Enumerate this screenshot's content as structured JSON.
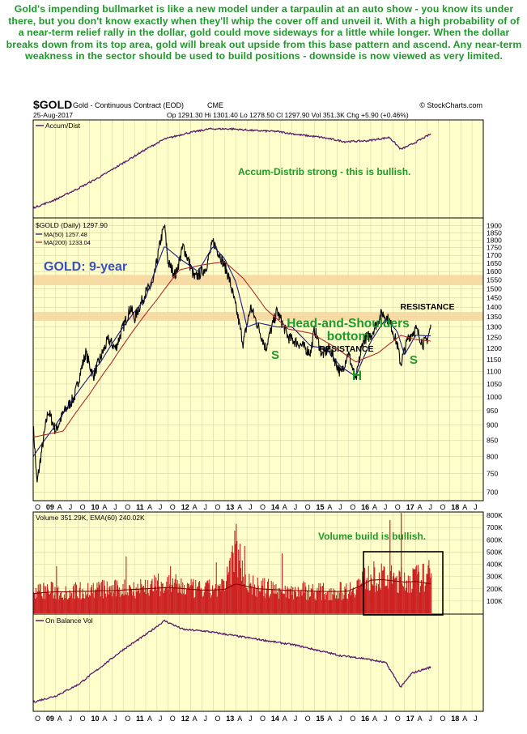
{
  "caption": "Gold's impending bullmarket is like a new model under a tarpaulin at an auto show - you know its under there, but you don't know exactly when they'll whip the cover off and unveil it. With a high probability of of a near-term relief rally in the dollar, gold could move sideways for a little while longer. When the dollar breaks down from its top area, gold will break out upside from this base pattern and ascend. Any near-term weakness in the sector should be used to build positions - downside is now viewed as very limited.",
  "header": {
    "symbol": "$GOLD",
    "name": "Gold - Continuous Contract (EOD)",
    "exchange": "CME",
    "source": "© StockCharts.com",
    "date": "25-Aug-2017",
    "quote": "Op 1291.30  Hi 1301.40  Lo 1278.50  Cl 1297.90  Vol 351.3K  Chg +5.90 (+0.46%)"
  },
  "colors": {
    "panel_bg": "#ffffcc",
    "frame": "#000000",
    "grid": "#d8d3a8",
    "price": "#000000",
    "ma50": "#1a1a80",
    "ma200": "#b02a2a",
    "volume": "#cc2222",
    "volume_ema": "#8b0000",
    "indicator": "#5a1a6a",
    "resistance_band": "#f6d7a0",
    "annotation_green": "#1f9a2a",
    "annotation_blue": "#3a50c0",
    "resistance_text": "#000000"
  },
  "chart_data": [
    {
      "type": "line",
      "panel": "accum-dist",
      "legend": "Accum/Dist",
      "annotation": "Accum-Distrib strong - this is bullish.",
      "x": [
        "2008-10",
        "2009-04",
        "2009-10",
        "2010-04",
        "2010-10",
        "2011-04",
        "2011-09",
        "2012-03",
        "2012-09",
        "2013-03",
        "2013-09",
        "2014-03",
        "2014-09",
        "2015-03",
        "2015-09",
        "2016-03",
        "2016-09",
        "2016-12",
        "2017-03",
        "2017-08"
      ],
      "values": [
        0.05,
        0.15,
        0.28,
        0.42,
        0.58,
        0.74,
        0.86,
        0.93,
        0.98,
        0.98,
        0.96,
        0.95,
        0.91,
        0.88,
        0.83,
        0.84,
        0.88,
        0.74,
        0.8,
        0.92
      ]
    },
    {
      "type": "line",
      "panel": "price",
      "title": "GOLD: 9-year",
      "legend": [
        {
          "name": "$GOLD (Daily) 1297.90",
          "color": "#000000"
        },
        {
          "name": "MA(50) 1257.48",
          "color": "#1a1a80"
        },
        {
          "name": "MA(200) 1233.04",
          "color": "#b02a2a"
        }
      ],
      "y_ticks": [
        700,
        750,
        800,
        850,
        900,
        950,
        1000,
        1050,
        1100,
        1150,
        1200,
        1250,
        1300,
        1350,
        1400,
        1450,
        1500,
        1550,
        1600,
        1650,
        1700,
        1750,
        1800,
        1850,
        1900
      ],
      "ylim": [
        680,
        1950
      ],
      "log_scale": true,
      "series": [
        {
          "name": "$GOLD (Daily)",
          "x": [
            "2008-10",
            "2008-11",
            "2009-02",
            "2009-04",
            "2009-06",
            "2009-09",
            "2009-12",
            "2010-02",
            "2010-06",
            "2010-08",
            "2010-12",
            "2011-01",
            "2011-04",
            "2011-06",
            "2011-08",
            "2011-09",
            "2011-10",
            "2011-12",
            "2012-02",
            "2012-05",
            "2012-08",
            "2012-10",
            "2012-12",
            "2013-02",
            "2013-04",
            "2013-06",
            "2013-08",
            "2013-12",
            "2014-03",
            "2014-06",
            "2014-09",
            "2014-12",
            "2015-01",
            "2015-03",
            "2015-05",
            "2015-08",
            "2015-10",
            "2015-12",
            "2016-02",
            "2016-04",
            "2016-07",
            "2016-09",
            "2016-11",
            "2016-12",
            "2017-02",
            "2017-04",
            "2017-06",
            "2017-07",
            "2017-08"
          ],
          "values": [
            900,
            720,
            950,
            880,
            940,
            1000,
            1180,
            1080,
            1240,
            1200,
            1400,
            1340,
            1480,
            1530,
            1800,
            1900,
            1650,
            1580,
            1760,
            1560,
            1620,
            1790,
            1690,
            1580,
            1400,
            1220,
            1400,
            1200,
            1380,
            1250,
            1220,
            1180,
            1290,
            1170,
            1200,
            1090,
            1180,
            1060,
            1240,
            1260,
            1370,
            1330,
            1220,
            1130,
            1250,
            1290,
            1220,
            1240,
            1298
          ]
        },
        {
          "name": "MA(50)",
          "x": [
            "2008-10",
            "2009-04",
            "2009-10",
            "2010-04",
            "2010-10",
            "2011-04",
            "2011-09",
            "2012-01",
            "2012-06",
            "2012-10",
            "2013-01",
            "2013-04",
            "2013-07",
            "2013-10",
            "2014-03",
            "2014-07",
            "2014-12",
            "2015-04",
            "2015-08",
            "2015-12",
            "2016-04",
            "2016-08",
            "2016-11",
            "2017-01",
            "2017-04",
            "2017-08"
          ],
          "values": [
            800,
            900,
            1020,
            1140,
            1300,
            1450,
            1760,
            1680,
            1600,
            1760,
            1680,
            1540,
            1300,
            1320,
            1300,
            1300,
            1210,
            1200,
            1120,
            1080,
            1230,
            1340,
            1280,
            1170,
            1260,
            1257
          ]
        },
        {
          "name": "MA(200)",
          "x": [
            "2008-10",
            "2009-06",
            "2010-01",
            "2010-07",
            "2011-01",
            "2011-07",
            "2012-01",
            "2012-07",
            "2013-01",
            "2013-06",
            "2013-12",
            "2014-06",
            "2014-12",
            "2015-06",
            "2015-12",
            "2016-06",
            "2016-12",
            "2017-04",
            "2017-08"
          ],
          "values": [
            860,
            880,
            1010,
            1140,
            1290,
            1440,
            1610,
            1640,
            1660,
            1560,
            1390,
            1290,
            1270,
            1210,
            1140,
            1180,
            1260,
            1240,
            1233
          ]
        }
      ],
      "bands": [
        {
          "label": "RESISTANCE",
          "from": 1520,
          "to": 1580
        },
        {
          "label": "RESISTANCE",
          "from": 1330,
          "to": 1375
        }
      ],
      "annotations": [
        "Head-and-Shoulders",
        "bottom",
        "S",
        "H",
        "S"
      ]
    },
    {
      "type": "bar",
      "panel": "volume",
      "legend": "Volume 351.29K, EMA(60) 240.02K",
      "annotation": "Volume build is bullish.",
      "y_ticks": [
        "100K",
        "200K",
        "300K",
        "400K",
        "500K",
        "600K",
        "700K",
        "800K"
      ],
      "y_tick_values": [
        100000,
        200000,
        300000,
        400000,
        500000,
        600000,
        700000,
        800000
      ],
      "ylim": [
        0,
        820000
      ],
      "x": [
        "2008-10",
        "2009-01",
        "2009-04",
        "2009-07",
        "2009-10",
        "2010-01",
        "2010-04",
        "2010-07",
        "2010-10",
        "2011-01",
        "2011-04",
        "2011-07",
        "2011-10",
        "2012-01",
        "2012-04",
        "2012-07",
        "2012-10",
        "2013-01",
        "2013-04",
        "2013-07",
        "2013-10",
        "2014-01",
        "2014-04",
        "2014-07",
        "2014-10",
        "2015-01",
        "2015-04",
        "2015-07",
        "2015-10",
        "2016-01",
        "2016-04",
        "2016-07",
        "2016-10",
        "2017-01",
        "2017-04",
        "2017-07",
        "2017-08"
      ],
      "values": [
        180000,
        200000,
        190000,
        185000,
        195000,
        200000,
        210000,
        200000,
        215000,
        220000,
        230000,
        240000,
        250000,
        230000,
        210000,
        200000,
        210000,
        220000,
        580000,
        260000,
        220000,
        210000,
        200000,
        190000,
        200000,
        190000,
        185000,
        190000,
        200000,
        260000,
        320000,
        300000,
        290000,
        280000,
        300000,
        310000,
        351290
      ],
      "ema_values": [
        160000,
        170000,
        175000,
        175000,
        180000,
        180000,
        185000,
        185000,
        190000,
        195000,
        200000,
        205000,
        210000,
        205000,
        195000,
        190000,
        190000,
        195000,
        240000,
        220000,
        200000,
        195000,
        190000,
        185000,
        185000,
        180000,
        178000,
        178000,
        182000,
        220000,
        270000,
        275000,
        265000,
        255000,
        260000,
        245000,
        240020
      ]
    },
    {
      "type": "line",
      "panel": "on-balance-volume",
      "legend": "On Balance Vol",
      "x": [
        "2008-10",
        "2009-04",
        "2009-10",
        "2010-04",
        "2010-10",
        "2011-04",
        "2011-09",
        "2012-02",
        "2012-08",
        "2013-02",
        "2013-08",
        "2014-02",
        "2014-08",
        "2015-02",
        "2015-08",
        "2016-02",
        "2016-08",
        "2016-12",
        "2017-03",
        "2017-08"
      ],
      "values": [
        0.05,
        0.12,
        0.25,
        0.45,
        0.65,
        0.82,
        0.98,
        0.88,
        0.86,
        0.82,
        0.78,
        0.74,
        0.7,
        0.64,
        0.58,
        0.55,
        0.5,
        0.22,
        0.38,
        0.45
      ]
    }
  ],
  "x_axis": {
    "labels": [
      {
        "t": "2008-10",
        "text": "O"
      },
      {
        "t": "2009-01",
        "text": "09"
      },
      {
        "t": "2009-04",
        "text": "A"
      },
      {
        "t": "2009-07",
        "text": "J"
      },
      {
        "t": "2009-10",
        "text": "O"
      },
      {
        "t": "2010-01",
        "text": "10"
      },
      {
        "t": "2010-04",
        "text": "A"
      },
      {
        "t": "2010-07",
        "text": "J"
      },
      {
        "t": "2010-10",
        "text": "O"
      },
      {
        "t": "2011-01",
        "text": "11"
      },
      {
        "t": "2011-04",
        "text": "A"
      },
      {
        "t": "2011-07",
        "text": "J"
      },
      {
        "t": "2011-10",
        "text": "O"
      },
      {
        "t": "2012-01",
        "text": "12"
      },
      {
        "t": "2012-04",
        "text": "A"
      },
      {
        "t": "2012-07",
        "text": "J"
      },
      {
        "t": "2012-10",
        "text": "O"
      },
      {
        "t": "2013-01",
        "text": "13"
      },
      {
        "t": "2013-04",
        "text": "A"
      },
      {
        "t": "2013-07",
        "text": "J"
      },
      {
        "t": "2013-10",
        "text": "O"
      },
      {
        "t": "2014-01",
        "text": "14"
      },
      {
        "t": "2014-04",
        "text": "A"
      },
      {
        "t": "2014-07",
        "text": "J"
      },
      {
        "t": "2014-10",
        "text": "O"
      },
      {
        "t": "2015-01",
        "text": "15"
      },
      {
        "t": "2015-04",
        "text": "A"
      },
      {
        "t": "2015-07",
        "text": "J"
      },
      {
        "t": "2015-10",
        "text": "O"
      },
      {
        "t": "2016-01",
        "text": "16"
      },
      {
        "t": "2016-04",
        "text": "A"
      },
      {
        "t": "2016-07",
        "text": "J"
      },
      {
        "t": "2016-10",
        "text": "O"
      },
      {
        "t": "2017-01",
        "text": "17"
      },
      {
        "t": "2017-04",
        "text": "A"
      },
      {
        "t": "2017-07",
        "text": "J"
      },
      {
        "t": "2017-10",
        "text": "O"
      },
      {
        "t": "2018-01",
        "text": "18"
      },
      {
        "t": "2018-04",
        "text": "A"
      },
      {
        "t": "2018-07",
        "text": "J"
      }
    ]
  }
}
